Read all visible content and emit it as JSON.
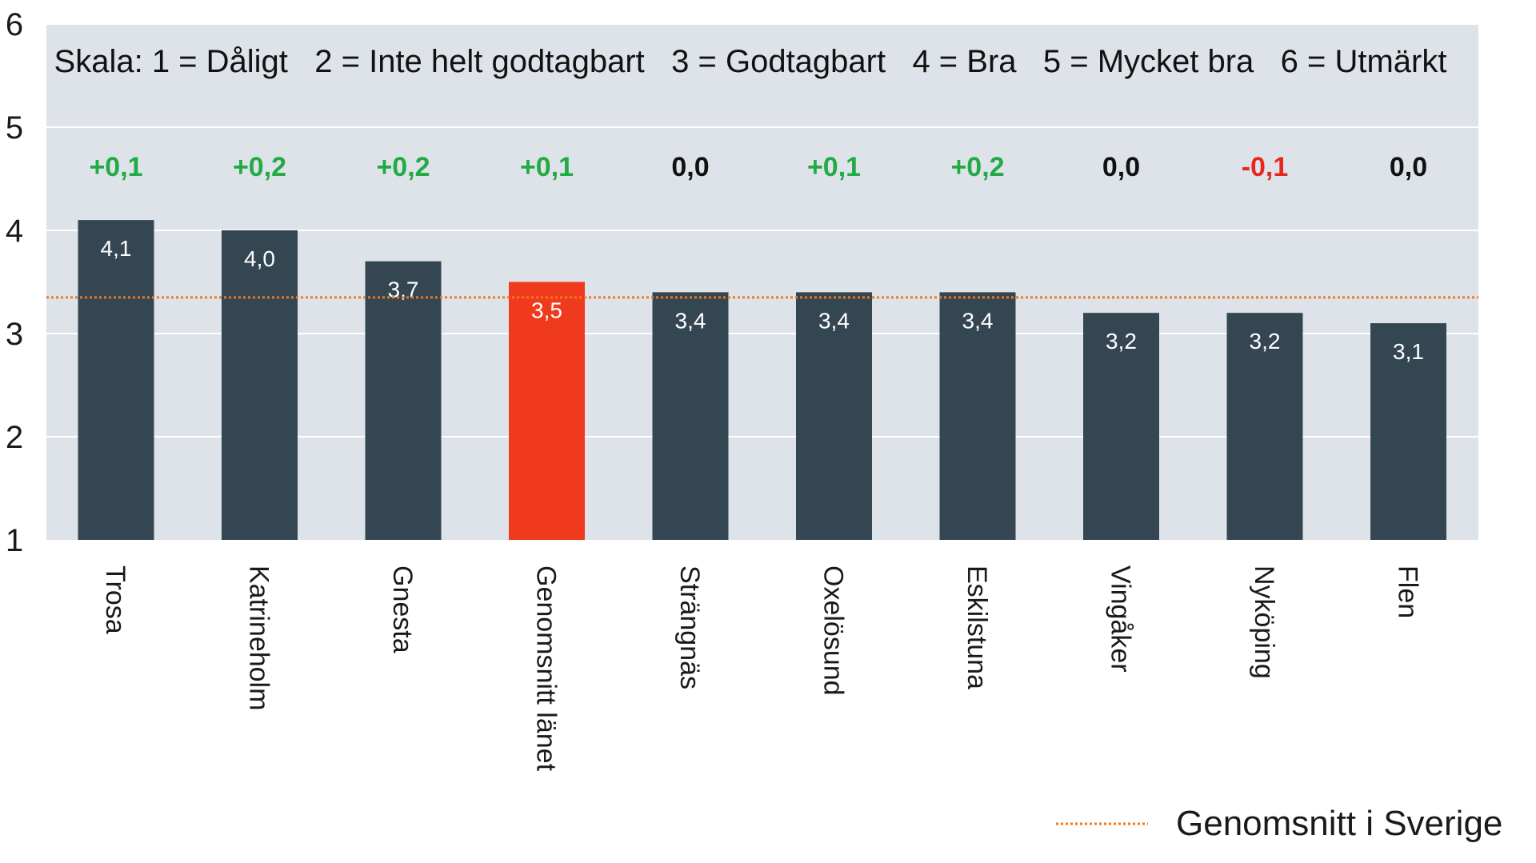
{
  "chart_data": {
    "type": "bar",
    "categories": [
      "Trosa",
      "Katrineholm",
      "Gnesta",
      "Genomsnitt länet",
      "Strängnäs",
      "Oxelösund",
      "Eskilstuna",
      "Vingåker",
      "Nyköping",
      "Flen"
    ],
    "values": [
      4.1,
      4.0,
      3.7,
      3.5,
      3.4,
      3.4,
      3.4,
      3.2,
      3.2,
      3.1
    ],
    "value_labels": [
      "4,1",
      "4,0",
      "3,7",
      "3,5",
      "3,4",
      "3,4",
      "3,4",
      "3,2",
      "3,2",
      "3,1"
    ],
    "changes": [
      "+0,1",
      "+0,2",
      "+0,2",
      "+0,1",
      "0,0",
      "+0,1",
      "+0,2",
      "0,0",
      "-0,1",
      "0,0"
    ],
    "highlight_category": "Genomsnitt länet",
    "reference_line": {
      "name": "Genomsnitt i Sverige",
      "value": 3.35
    },
    "annotation": "Skala: 1 = Dåligt   2 = Inte helt godtagbart   3 = Godtagbart   4 = Bra   5 = Mycket bra   6 = Utmärkt",
    "yticks": [
      "1",
      "2",
      "3",
      "4",
      "5",
      "6"
    ],
    "ylim": [
      1,
      6
    ],
    "grid": true,
    "legend_position": "bottom-right",
    "title": "",
    "xlabel": "",
    "ylabel": ""
  },
  "colors": {
    "plot_background": "#dde3e8",
    "bar": "#354653",
    "bar_highlight": "#f03a1d",
    "reference_line": "#ef7a1a",
    "positive": "#22aa44",
    "negative": "#e8281e",
    "neutral": "#111111",
    "gridline": "#ffffff"
  }
}
